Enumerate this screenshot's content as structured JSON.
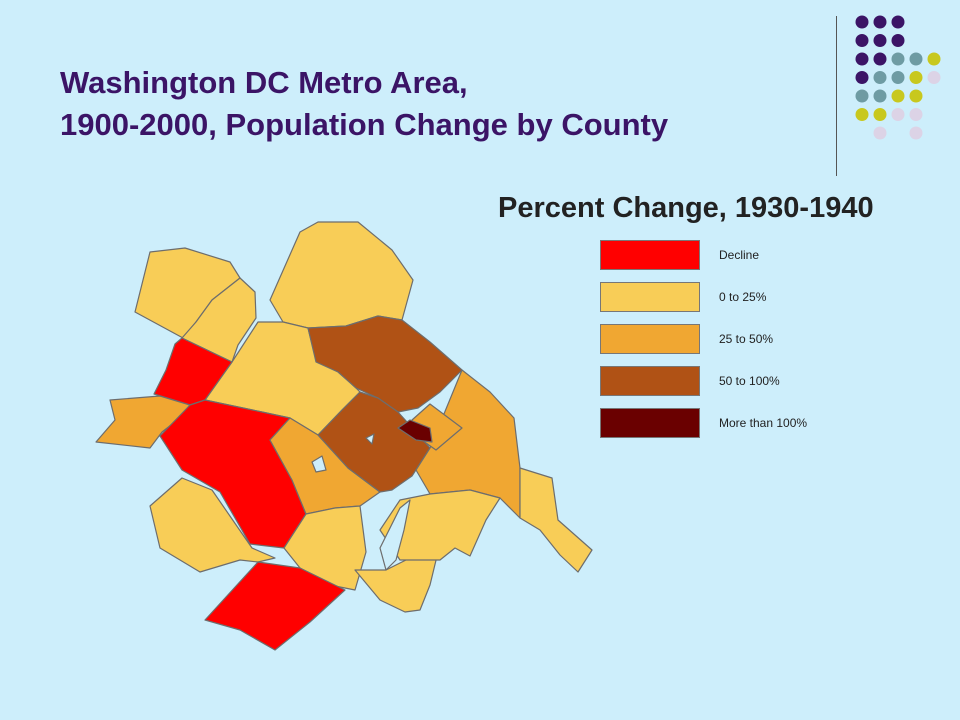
{
  "title": {
    "line1": "Washington DC Metro Area,",
    "line2": "1900-2000, Population Change by County"
  },
  "subtitle": "Percent Change, 1930-1940",
  "legend": {
    "items": [
      {
        "label": "Decline",
        "color": "#ff0000"
      },
      {
        "label": "0 to 25%",
        "color": "#f8cd57"
      },
      {
        "label": "25 to 50%",
        "color": "#f0a732"
      },
      {
        "label": "50 to 100%",
        "color": "#b05215"
      },
      {
        "label": "More than 100%",
        "color": "#6a0000"
      }
    ]
  },
  "colors": {
    "background": "#cdeefb",
    "title": "#3b1466",
    "water": "#cdeefb",
    "dot_palette": [
      "#3b1466",
      "#6e9ba3",
      "#c8c81e",
      "#dcd3e6"
    ]
  },
  "map": {
    "regions": [
      {
        "id": "frederick-va",
        "category": "0 to 25%"
      },
      {
        "id": "clarke",
        "category": "0 to 25%"
      },
      {
        "id": "frederick-md",
        "category": "0 to 25%"
      },
      {
        "id": "loudoun",
        "category": "0 to 25%"
      },
      {
        "id": "montgomery",
        "category": "50 to 100%"
      },
      {
        "id": "warren",
        "category": "Decline"
      },
      {
        "id": "page-rappahannock",
        "category": "25 to 50%"
      },
      {
        "id": "fauquier",
        "category": "Decline"
      },
      {
        "id": "prince-william",
        "category": "25 to 50%"
      },
      {
        "id": "fairfax",
        "category": "50 to 100%"
      },
      {
        "id": "arlington",
        "category": "More than 100%"
      },
      {
        "id": "district-of-columbia",
        "category": "25 to 50%"
      },
      {
        "id": "prince-georges",
        "category": "25 to 50%"
      },
      {
        "id": "culpeper",
        "category": "0 to 25%"
      },
      {
        "id": "stafford",
        "category": "0 to 25%"
      },
      {
        "id": "king-george",
        "category": "0 to 25%"
      },
      {
        "id": "charles",
        "category": "0 to 25%"
      },
      {
        "id": "calvert",
        "category": "0 to 25%"
      },
      {
        "id": "spotsylvania",
        "category": "Decline"
      }
    ]
  }
}
